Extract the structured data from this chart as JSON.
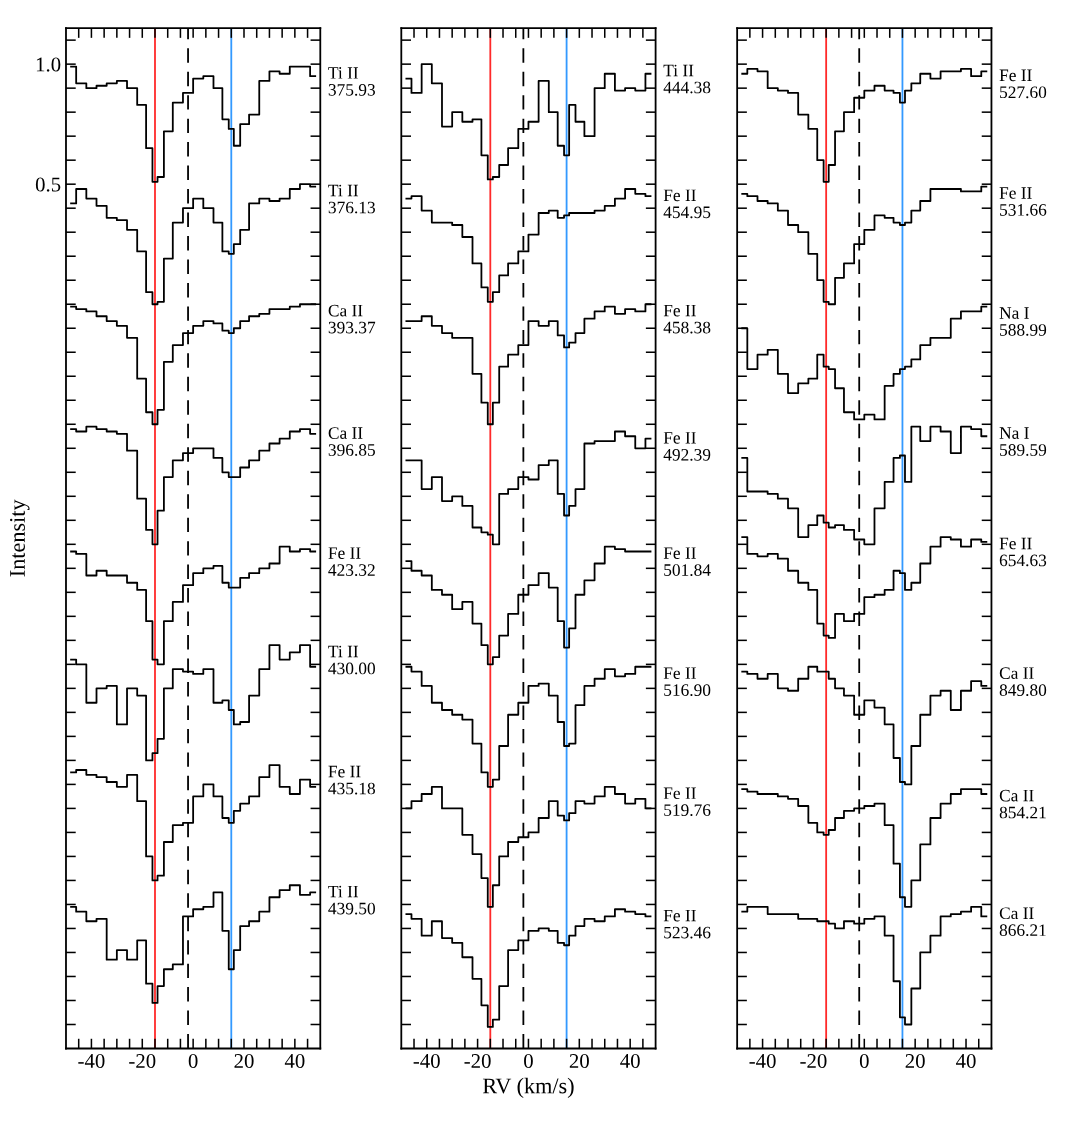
{
  "chart_data": [
    {
      "type": "step",
      "ylabel": "Intensity",
      "legend": "right",
      "xlim": [
        -50,
        50
      ],
      "ylim": [
        -3.1,
        1.15
      ],
      "xticks": [
        {
          "value": -45,
          "label": null
        },
        -40,
        {
          "value": -35,
          "label": null
        },
        {
          "value": -30,
          "label": null
        },
        {
          "value": -25,
          "label": null
        },
        -20,
        {
          "value": -15,
          "label": null
        },
        {
          "value": -10,
          "label": null
        },
        {
          "value": -5,
          "label": null
        },
        0,
        {
          "value": 5,
          "label": null
        },
        {
          "value": 10,
          "label": null
        },
        {
          "value": 15,
          "label": null
        },
        20,
        {
          "value": 25,
          "label": null
        },
        {
          "value": 30,
          "label": null
        },
        {
          "value": 35,
          "label": null
        },
        40,
        {
          "value": 45,
          "label": null
        }
      ],
      "yticks": [
        {
          "value": -3.0,
          "label": null
        },
        {
          "value": -2.9,
          "label": null
        },
        {
          "value": -2.8,
          "label": null
        },
        {
          "value": -2.7,
          "label": null
        },
        {
          "value": -2.6,
          "label": null
        },
        {
          "value": -2.5,
          "label": null
        },
        {
          "value": -2.4,
          "label": null
        },
        {
          "value": -2.3,
          "label": null
        },
        {
          "value": -2.2,
          "label": null
        },
        {
          "value": -2.1,
          "label": null
        },
        {
          "value": -2.0,
          "label": null
        },
        {
          "value": -1.9,
          "label": null
        },
        {
          "value": -1.8,
          "label": null
        },
        {
          "value": -1.7,
          "label": null
        },
        {
          "value": -1.6,
          "label": null
        },
        {
          "value": -1.5,
          "label": null
        },
        {
          "value": -1.4,
          "label": null
        },
        {
          "value": -1.3,
          "label": null
        },
        {
          "value": -1.2,
          "label": null
        },
        {
          "value": -1.1,
          "label": null
        },
        {
          "value": -1.0,
          "label": null
        },
        {
          "value": -0.9,
          "label": null
        },
        {
          "value": -0.8,
          "label": null
        },
        {
          "value": -0.7,
          "label": null
        },
        {
          "value": -0.6,
          "label": null
        },
        {
          "value": -0.5,
          "label": null
        },
        {
          "value": -0.4,
          "label": null
        },
        {
          "value": -0.3,
          "label": null
        },
        {
          "value": -0.2,
          "label": null
        },
        {
          "value": -0.1,
          "label": null
        },
        {
          "value": 0.0,
          "label": null
        },
        {
          "value": 0.1,
          "label": null
        },
        {
          "value": 0.2,
          "label": null
        },
        {
          "value": 0.3,
          "label": null
        },
        {
          "value": 0.4,
          "label": null
        },
        {
          "value": 0.5,
          "label": "0.5"
        },
        {
          "value": 0.6,
          "label": null
        },
        {
          "value": 0.7,
          "label": null
        },
        {
          "value": 0.8,
          "label": null
        },
        {
          "value": 0.9,
          "label": null
        },
        {
          "value": 1.0,
          "label": "1.0"
        },
        {
          "value": 1.1,
          "label": null
        }
      ],
      "ref_lines": [
        {
          "axis": "x",
          "value": -15,
          "color": "#ff2a2a",
          "line_style": "solid"
        },
        {
          "axis": "x",
          "value": -2,
          "color": "#000000",
          "line_style": "dashed"
        },
        {
          "axis": "x",
          "value": 15,
          "color": "#3399ff",
          "line_style": "solid"
        }
      ],
      "x": [
        -48,
        -44,
        -40,
        -36,
        -32,
        -28,
        -24,
        -20,
        -17,
        -15,
        -13,
        -10,
        -6,
        -2,
        2,
        6,
        10,
        13,
        15,
        17,
        20,
        24,
        28,
        32,
        36,
        40,
        44,
        48
      ],
      "series": [
        {
          "name": "Ti II\n375.93",
          "color": "#000000",
          "values": [
            0.99,
            0.92,
            0.9,
            0.91,
            0.92,
            0.93,
            0.9,
            0.83,
            0.65,
            0.51,
            0.53,
            0.72,
            0.84,
            0.88,
            0.94,
            0.95,
            0.9,
            0.77,
            0.73,
            0.66,
            0.75,
            0.79,
            0.93,
            0.97,
            0.96,
            0.99,
            0.99,
            0.95
          ]
        },
        {
          "name": "Ti II\n376.13",
          "color": "#000000",
          "values": [
            0.42,
            0.48,
            0.44,
            0.41,
            0.36,
            0.35,
            0.31,
            0.22,
            0.05,
            0.0,
            0.01,
            0.19,
            0.34,
            0.4,
            0.44,
            0.4,
            0.34,
            0.22,
            0.21,
            0.25,
            0.31,
            0.42,
            0.44,
            0.43,
            0.44,
            0.48,
            0.5,
            0.49
          ]
        },
        {
          "name": "Ca II\n393.37",
          "color": "#000000",
          "values": [
            -0.01,
            -0.02,
            -0.03,
            -0.05,
            -0.07,
            -0.09,
            -0.14,
            -0.31,
            -0.45,
            -0.5,
            -0.44,
            -0.24,
            -0.17,
            -0.12,
            -0.09,
            -0.07,
            -0.08,
            -0.11,
            -0.12,
            -0.1,
            -0.07,
            -0.05,
            -0.04,
            -0.02,
            -0.02,
            -0.01,
            0.0,
            0.0
          ]
        },
        {
          "name": "Ca II\n396.85",
          "color": "#000000",
          "values": [
            -0.52,
            -0.53,
            -0.51,
            -0.52,
            -0.53,
            -0.54,
            -0.61,
            -0.81,
            -0.94,
            -1.0,
            -0.86,
            -0.72,
            -0.65,
            -0.62,
            -0.6,
            -0.6,
            -0.64,
            -0.7,
            -0.72,
            -0.72,
            -0.68,
            -0.65,
            -0.61,
            -0.58,
            -0.56,
            -0.53,
            -0.52,
            -0.54
          ]
        },
        {
          "name": "Fe II\n423.32",
          "color": "#000000",
          "values": [
            -1.03,
            -1.04,
            -1.13,
            -1.11,
            -1.13,
            -1.13,
            -1.16,
            -1.19,
            -1.32,
            -1.48,
            -1.5,
            -1.32,
            -1.24,
            -1.17,
            -1.12,
            -1.1,
            -1.09,
            -1.16,
            -1.18,
            -1.18,
            -1.14,
            -1.12,
            -1.1,
            -1.08,
            -1.01,
            -1.03,
            -1.02,
            -1.03
          ]
        },
        {
          "name": "Ti II\n430.00",
          "color": "#000000",
          "values": [
            -1.48,
            -1.5,
            -1.66,
            -1.6,
            -1.59,
            -1.75,
            -1.6,
            -1.63,
            -1.9,
            -1.87,
            -1.81,
            -1.6,
            -1.52,
            -1.53,
            -1.54,
            -1.52,
            -1.66,
            -1.65,
            -1.69,
            -1.75,
            -1.74,
            -1.63,
            -1.52,
            -1.42,
            -1.48,
            -1.45,
            -1.42,
            -1.51
          ]
        },
        {
          "name": "Fe II\n435.18",
          "color": "#000000",
          "values": [
            -1.95,
            -1.94,
            -1.96,
            -1.97,
            -1.99,
            -2.01,
            -1.96,
            -2.07,
            -2.3,
            -2.4,
            -2.38,
            -2.24,
            -2.17,
            -2.16,
            -2.05,
            -2.0,
            -2.05,
            -2.14,
            -2.16,
            -2.11,
            -2.08,
            -2.05,
            -1.97,
            -1.92,
            -2.01,
            -2.04,
            -1.98,
            -2.01
          ]
        },
        {
          "name": "Ti II\n439.50",
          "color": "#000000",
          "values": [
            -2.51,
            -2.53,
            -2.57,
            -2.56,
            -2.73,
            -2.69,
            -2.73,
            -2.65,
            -2.83,
            -2.91,
            -2.84,
            -2.77,
            -2.75,
            -2.55,
            -2.52,
            -2.51,
            -2.45,
            -2.61,
            -2.77,
            -2.69,
            -2.59,
            -2.57,
            -2.53,
            -2.47,
            -2.44,
            -2.42,
            -2.46,
            -2.45
          ]
        }
      ]
    },
    {
      "type": "step",
      "xlabel": "RV (km/s)",
      "legend": "right",
      "tick_labels": "x",
      "xlim": [
        -50,
        50
      ],
      "ylim": [
        -3.1,
        1.15
      ],
      "xticks": [
        {
          "value": -45,
          "label": null
        },
        -40,
        {
          "value": -35,
          "label": null
        },
        {
          "value": -30,
          "label": null
        },
        {
          "value": -25,
          "label": null
        },
        -20,
        {
          "value": -15,
          "label": null
        },
        {
          "value": -10,
          "label": null
        },
        {
          "value": -5,
          "label": null
        },
        0,
        {
          "value": 5,
          "label": null
        },
        {
          "value": 10,
          "label": null
        },
        {
          "value": 15,
          "label": null
        },
        20,
        {
          "value": 25,
          "label": null
        },
        {
          "value": 30,
          "label": null
        },
        {
          "value": 35,
          "label": null
        },
        40,
        {
          "value": 45,
          "label": null
        }
      ],
      "yticks": [
        {
          "value": -3.0,
          "label": null
        },
        {
          "value": -2.9,
          "label": null
        },
        {
          "value": -2.8,
          "label": null
        },
        {
          "value": -2.7,
          "label": null
        },
        {
          "value": -2.6,
          "label": null
        },
        {
          "value": -2.5,
          "label": null
        },
        {
          "value": -2.4,
          "label": null
        },
        {
          "value": -2.3,
          "label": null
        },
        {
          "value": -2.2,
          "label": null
        },
        {
          "value": -2.1,
          "label": null
        },
        {
          "value": -2.0,
          "label": null
        },
        {
          "value": -1.9,
          "label": null
        },
        {
          "value": -1.8,
          "label": null
        },
        {
          "value": -1.7,
          "label": null
        },
        {
          "value": -1.6,
          "label": null
        },
        {
          "value": -1.5,
          "label": null
        },
        {
          "value": -1.4,
          "label": null
        },
        {
          "value": -1.3,
          "label": null
        },
        {
          "value": -1.2,
          "label": null
        },
        {
          "value": -1.1,
          "label": null
        },
        {
          "value": -1.0,
          "label": null
        },
        {
          "value": -0.9,
          "label": null
        },
        {
          "value": -0.8,
          "label": null
        },
        {
          "value": -0.7,
          "label": null
        },
        {
          "value": -0.6,
          "label": null
        },
        {
          "value": -0.5,
          "label": null
        },
        {
          "value": -0.4,
          "label": null
        },
        {
          "value": -0.3,
          "label": null
        },
        {
          "value": -0.2,
          "label": null
        },
        {
          "value": -0.1,
          "label": null
        },
        {
          "value": 0.0,
          "label": null
        },
        {
          "value": 0.1,
          "label": null
        },
        {
          "value": 0.2,
          "label": null
        },
        {
          "value": 0.3,
          "label": null
        },
        {
          "value": 0.4,
          "label": null
        },
        {
          "value": 0.5,
          "label": null
        },
        {
          "value": 0.6,
          "label": null
        },
        {
          "value": 0.7,
          "label": null
        },
        {
          "value": 0.8,
          "label": null
        },
        {
          "value": 0.9,
          "label": null
        },
        {
          "value": 1.0,
          "label": null
        },
        {
          "value": 1.1,
          "label": null
        }
      ],
      "ref_lines": [
        {
          "axis": "x",
          "value": -15,
          "color": "#ff2a2a",
          "line_style": "solid"
        },
        {
          "axis": "x",
          "value": -2,
          "color": "#000000",
          "line_style": "dashed"
        },
        {
          "axis": "x",
          "value": 15,
          "color": "#3399ff",
          "line_style": "solid"
        }
      ],
      "x": [
        -48,
        -44,
        -40,
        -36,
        -32,
        -28,
        -24,
        -20,
        -17,
        -15,
        -13,
        -10,
        -6,
        -2,
        2,
        6,
        10,
        13,
        15,
        17,
        20,
        24,
        28,
        32,
        36,
        40,
        44,
        48
      ],
      "series": [
        {
          "name": "Ti II\n444.38",
          "color": "#000000",
          "values": [
            0.94,
            0.88,
            1.0,
            0.92,
            0.74,
            0.8,
            0.76,
            0.77,
            0.62,
            0.52,
            0.53,
            0.58,
            0.65,
            0.73,
            0.76,
            0.93,
            0.8,
            0.66,
            0.62,
            0.83,
            0.76,
            0.7,
            0.9,
            0.96,
            0.89,
            0.9,
            0.89,
            0.96
          ]
        },
        {
          "name": "Fe II\n454.95",
          "color": "#000000",
          "values": [
            0.44,
            0.45,
            0.39,
            0.34,
            0.34,
            0.33,
            0.28,
            0.17,
            0.07,
            0.01,
            0.05,
            0.12,
            0.17,
            0.22,
            0.29,
            0.38,
            0.39,
            0.36,
            0.37,
            0.38,
            0.38,
            0.38,
            0.39,
            0.41,
            0.44,
            0.48,
            0.46,
            0.45
          ]
        },
        {
          "name": "Fe II\n458.38",
          "color": "#000000",
          "values": [
            -0.07,
            -0.07,
            -0.05,
            -0.09,
            -0.12,
            -0.14,
            -0.14,
            -0.29,
            -0.41,
            -0.5,
            -0.41,
            -0.26,
            -0.21,
            -0.17,
            -0.07,
            -0.09,
            -0.07,
            -0.13,
            -0.18,
            -0.16,
            -0.12,
            -0.06,
            -0.03,
            -0.01,
            -0.04,
            -0.02,
            -0.03,
            0.0
          ]
        },
        {
          "name": "Fe II\n492.39",
          "color": "#000000",
          "values": [
            -0.65,
            -0.65,
            -0.77,
            -0.72,
            -0.82,
            -0.8,
            -0.84,
            -0.93,
            -0.95,
            -0.96,
            -1.0,
            -0.79,
            -0.77,
            -0.72,
            -0.73,
            -0.67,
            -0.65,
            -0.79,
            -0.88,
            -0.84,
            -0.77,
            -0.58,
            -0.57,
            -0.57,
            -0.53,
            -0.55,
            -0.6,
            -0.56
          ]
        },
        {
          "name": "Fe II\n501.84",
          "color": "#000000",
          "values": [
            -1.07,
            -1.11,
            -1.13,
            -1.19,
            -1.21,
            -1.27,
            -1.24,
            -1.33,
            -1.42,
            -1.5,
            -1.47,
            -1.38,
            -1.29,
            -1.21,
            -1.17,
            -1.12,
            -1.18,
            -1.32,
            -1.43,
            -1.35,
            -1.21,
            -1.15,
            -1.08,
            -1.01,
            -1.02,
            -1.03,
            -1.03,
            -1.03
          ]
        },
        {
          "name": "Fe II\n516.90",
          "color": "#000000",
          "values": [
            -1.51,
            -1.53,
            -1.59,
            -1.66,
            -1.69,
            -1.71,
            -1.73,
            -1.83,
            -1.95,
            -2.01,
            -1.98,
            -1.84,
            -1.71,
            -1.66,
            -1.59,
            -1.58,
            -1.63,
            -1.74,
            -1.84,
            -1.83,
            -1.67,
            -1.59,
            -1.56,
            -1.52,
            -1.55,
            -1.54,
            -1.51,
            -1.51
          ]
        },
        {
          "name": "Fe II\n519.76",
          "color": "#000000",
          "values": [
            -2.1,
            -2.07,
            -2.04,
            -2.01,
            -2.1,
            -2.1,
            -2.21,
            -2.29,
            -2.39,
            -2.51,
            -2.42,
            -2.3,
            -2.24,
            -2.22,
            -2.2,
            -2.14,
            -2.07,
            -2.13,
            -2.15,
            -2.12,
            -2.07,
            -2.08,
            -2.05,
            -2.01,
            -2.04,
            -2.08,
            -2.06,
            -2.1
          ]
        },
        {
          "name": "Fe II\n523.46",
          "color": "#000000",
          "values": [
            -2.54,
            -2.56,
            -2.63,
            -2.57,
            -2.64,
            -2.66,
            -2.72,
            -2.81,
            -2.92,
            -3.01,
            -2.98,
            -2.84,
            -2.69,
            -2.65,
            -2.61,
            -2.6,
            -2.61,
            -2.66,
            -2.67,
            -2.63,
            -2.59,
            -2.56,
            -2.57,
            -2.55,
            -2.52,
            -2.53,
            -2.54,
            -2.55
          ]
        }
      ]
    },
    {
      "type": "step",
      "legend": "right",
      "tick_labels": "x",
      "xlim": [
        -50,
        50
      ],
      "ylim": [
        -3.1,
        1.15
      ],
      "xticks": [
        {
          "value": -45,
          "label": null
        },
        -40,
        {
          "value": -35,
          "label": null
        },
        {
          "value": -30,
          "label": null
        },
        {
          "value": -25,
          "label": null
        },
        -20,
        {
          "value": -15,
          "label": null
        },
        {
          "value": -10,
          "label": null
        },
        {
          "value": -5,
          "label": null
        },
        0,
        {
          "value": 5,
          "label": null
        },
        {
          "value": 10,
          "label": null
        },
        {
          "value": 15,
          "label": null
        },
        20,
        {
          "value": 25,
          "label": null
        },
        {
          "value": 30,
          "label": null
        },
        {
          "value": 35,
          "label": null
        },
        40,
        {
          "value": 45,
          "label": null
        }
      ],
      "yticks": [
        {
          "value": -3.0,
          "label": null
        },
        {
          "value": -2.9,
          "label": null
        },
        {
          "value": -2.8,
          "label": null
        },
        {
          "value": -2.7,
          "label": null
        },
        {
          "value": -2.6,
          "label": null
        },
        {
          "value": -2.5,
          "label": null
        },
        {
          "value": -2.4,
          "label": null
        },
        {
          "value": -2.3,
          "label": null
        },
        {
          "value": -2.2,
          "label": null
        },
        {
          "value": -2.1,
          "label": null
        },
        {
          "value": -2.0,
          "label": null
        },
        {
          "value": -1.9,
          "label": null
        },
        {
          "value": -1.8,
          "label": null
        },
        {
          "value": -1.7,
          "label": null
        },
        {
          "value": -1.6,
          "label": null
        },
        {
          "value": -1.5,
          "label": null
        },
        {
          "value": -1.4,
          "label": null
        },
        {
          "value": -1.3,
          "label": null
        },
        {
          "value": -1.2,
          "label": null
        },
        {
          "value": -1.1,
          "label": null
        },
        {
          "value": -1.0,
          "label": null
        },
        {
          "value": -0.9,
          "label": null
        },
        {
          "value": -0.8,
          "label": null
        },
        {
          "value": -0.7,
          "label": null
        },
        {
          "value": -0.6,
          "label": null
        },
        {
          "value": -0.5,
          "label": null
        },
        {
          "value": -0.4,
          "label": null
        },
        {
          "value": -0.3,
          "label": null
        },
        {
          "value": -0.2,
          "label": null
        },
        {
          "value": -0.1,
          "label": null
        },
        {
          "value": 0.0,
          "label": null
        },
        {
          "value": 0.1,
          "label": null
        },
        {
          "value": 0.2,
          "label": null
        },
        {
          "value": 0.3,
          "label": null
        },
        {
          "value": 0.4,
          "label": null
        },
        {
          "value": 0.5,
          "label": null
        },
        {
          "value": 0.6,
          "label": null
        },
        {
          "value": 0.7,
          "label": null
        },
        {
          "value": 0.8,
          "label": null
        },
        {
          "value": 0.9,
          "label": null
        },
        {
          "value": 1.0,
          "label": null
        },
        {
          "value": 1.1,
          "label": null
        }
      ],
      "ref_lines": [
        {
          "axis": "x",
          "value": -15,
          "color": "#ff2a2a",
          "line_style": "solid"
        },
        {
          "axis": "x",
          "value": -2,
          "color": "#000000",
          "line_style": "dashed"
        },
        {
          "axis": "x",
          "value": 15,
          "color": "#3399ff",
          "line_style": "solid"
        }
      ],
      "x": [
        -48,
        -44,
        -40,
        -36,
        -32,
        -28,
        -24,
        -20,
        -17,
        -15,
        -13,
        -10,
        -6,
        -2,
        2,
        6,
        10,
        13,
        15,
        17,
        20,
        24,
        28,
        32,
        36,
        40,
        44,
        48
      ],
      "series": [
        {
          "name": "Fe II\n527.60",
          "color": "#000000",
          "values": [
            0.96,
            0.98,
            0.97,
            0.9,
            0.89,
            0.88,
            0.79,
            0.73,
            0.6,
            0.51,
            0.58,
            0.72,
            0.8,
            0.86,
            0.89,
            0.91,
            0.89,
            0.88,
            0.84,
            0.89,
            0.92,
            0.96,
            0.94,
            0.97,
            0.97,
            0.98,
            0.95,
            0.97
          ]
        },
        {
          "name": "Fe II\n531.66",
          "color": "#000000",
          "values": [
            0.46,
            0.45,
            0.43,
            0.42,
            0.39,
            0.33,
            0.3,
            0.21,
            0.1,
            0.01,
            0.0,
            0.11,
            0.17,
            0.25,
            0.31,
            0.37,
            0.36,
            0.34,
            0.33,
            0.34,
            0.39,
            0.43,
            0.48,
            0.48,
            0.48,
            0.47,
            0.47,
            0.49
          ]
        },
        {
          "name": "Na I\n588.99",
          "color": "#000000",
          "values": [
            -0.1,
            -0.27,
            -0.21,
            -0.19,
            -0.29,
            -0.37,
            -0.33,
            -0.31,
            -0.21,
            -0.26,
            -0.27,
            -0.35,
            -0.45,
            -0.48,
            -0.46,
            -0.48,
            -0.34,
            -0.29,
            -0.27,
            -0.26,
            -0.23,
            -0.17,
            -0.14,
            -0.14,
            -0.06,
            -0.03,
            -0.03,
            -0.01
          ]
        },
        {
          "name": "Na I\n589.59",
          "color": "#000000",
          "values": [
            -0.64,
            -0.78,
            -0.78,
            -0.79,
            -0.81,
            -0.85,
            -0.97,
            -0.92,
            -0.88,
            -0.91,
            -0.93,
            -0.92,
            -0.94,
            -0.98,
            -1.0,
            -0.85,
            -0.74,
            -0.64,
            -0.63,
            -0.74,
            -0.51,
            -0.57,
            -0.51,
            -0.53,
            -0.62,
            -0.51,
            -0.52,
            -0.55
          ]
        },
        {
          "name": "Fe II\n654.63",
          "color": "#000000",
          "values": [
            -0.97,
            -1.04,
            -1.05,
            -1.04,
            -1.06,
            -1.11,
            -1.16,
            -1.19,
            -1.33,
            -1.38,
            -1.39,
            -1.29,
            -1.32,
            -1.29,
            -1.22,
            -1.21,
            -1.19,
            -1.11,
            -1.12,
            -1.19,
            -1.16,
            -1.08,
            -1.01,
            -0.97,
            -0.98,
            -1.01,
            -0.98,
            -0.99
          ]
        },
        {
          "name": "Ca II\n849.80",
          "color": "#000000",
          "values": [
            -1.53,
            -1.54,
            -1.56,
            -1.54,
            -1.6,
            -1.61,
            -1.56,
            -1.51,
            -1.53,
            -1.53,
            -1.56,
            -1.6,
            -1.63,
            -1.71,
            -1.65,
            -1.68,
            -1.75,
            -1.89,
            -1.99,
            -2.0,
            -1.84,
            -1.71,
            -1.63,
            -1.61,
            -1.69,
            -1.61,
            -1.57,
            -1.59
          ]
        },
        {
          "name": "Ca II\n854.21",
          "color": "#000000",
          "values": [
            -2.02,
            -2.03,
            -2.04,
            -2.04,
            -2.05,
            -2.06,
            -2.09,
            -2.16,
            -2.2,
            -2.21,
            -2.19,
            -2.14,
            -2.11,
            -2.1,
            -2.09,
            -2.08,
            -2.17,
            -2.33,
            -2.47,
            -2.51,
            -2.4,
            -2.25,
            -2.14,
            -2.08,
            -2.04,
            -2.02,
            -2.02,
            -2.04
          ]
        },
        {
          "name": "Ca II\n866.21",
          "color": "#000000",
          "values": [
            -2.53,
            -2.51,
            -2.51,
            -2.54,
            -2.54,
            -2.54,
            -2.56,
            -2.56,
            -2.57,
            -2.57,
            -2.58,
            -2.6,
            -2.57,
            -2.58,
            -2.56,
            -2.55,
            -2.63,
            -2.82,
            -2.97,
            -3.0,
            -2.85,
            -2.7,
            -2.63,
            -2.55,
            -2.54,
            -2.53,
            -2.51,
            -2.55
          ]
        }
      ]
    }
  ]
}
